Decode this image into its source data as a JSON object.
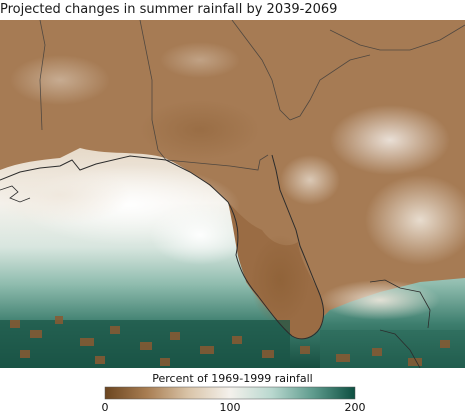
{
  "title": "Projected changes in summer rainfall by 2039-2069",
  "legend": {
    "title": "Percent of 1969-1999 rainfall",
    "ticks": [
      "0",
      "100",
      "200"
    ],
    "range": [
      0,
      200
    ],
    "colors": [
      "#6b4520",
      "#a87d52",
      "#d9c4a8",
      "#f4f1ec",
      "#b9d8cf",
      "#5e9b8d",
      "#0d4f41"
    ]
  },
  "colors": {
    "land_dry": "#9c7049",
    "land_mid": "#ad8560",
    "gulf_pale": "#e8ddd0",
    "gulf_white": "#f7f5f1",
    "gulf_teal": "#6aa598",
    "gulf_dark": "#0f4f40",
    "coastline": "#3a3a3a"
  }
}
